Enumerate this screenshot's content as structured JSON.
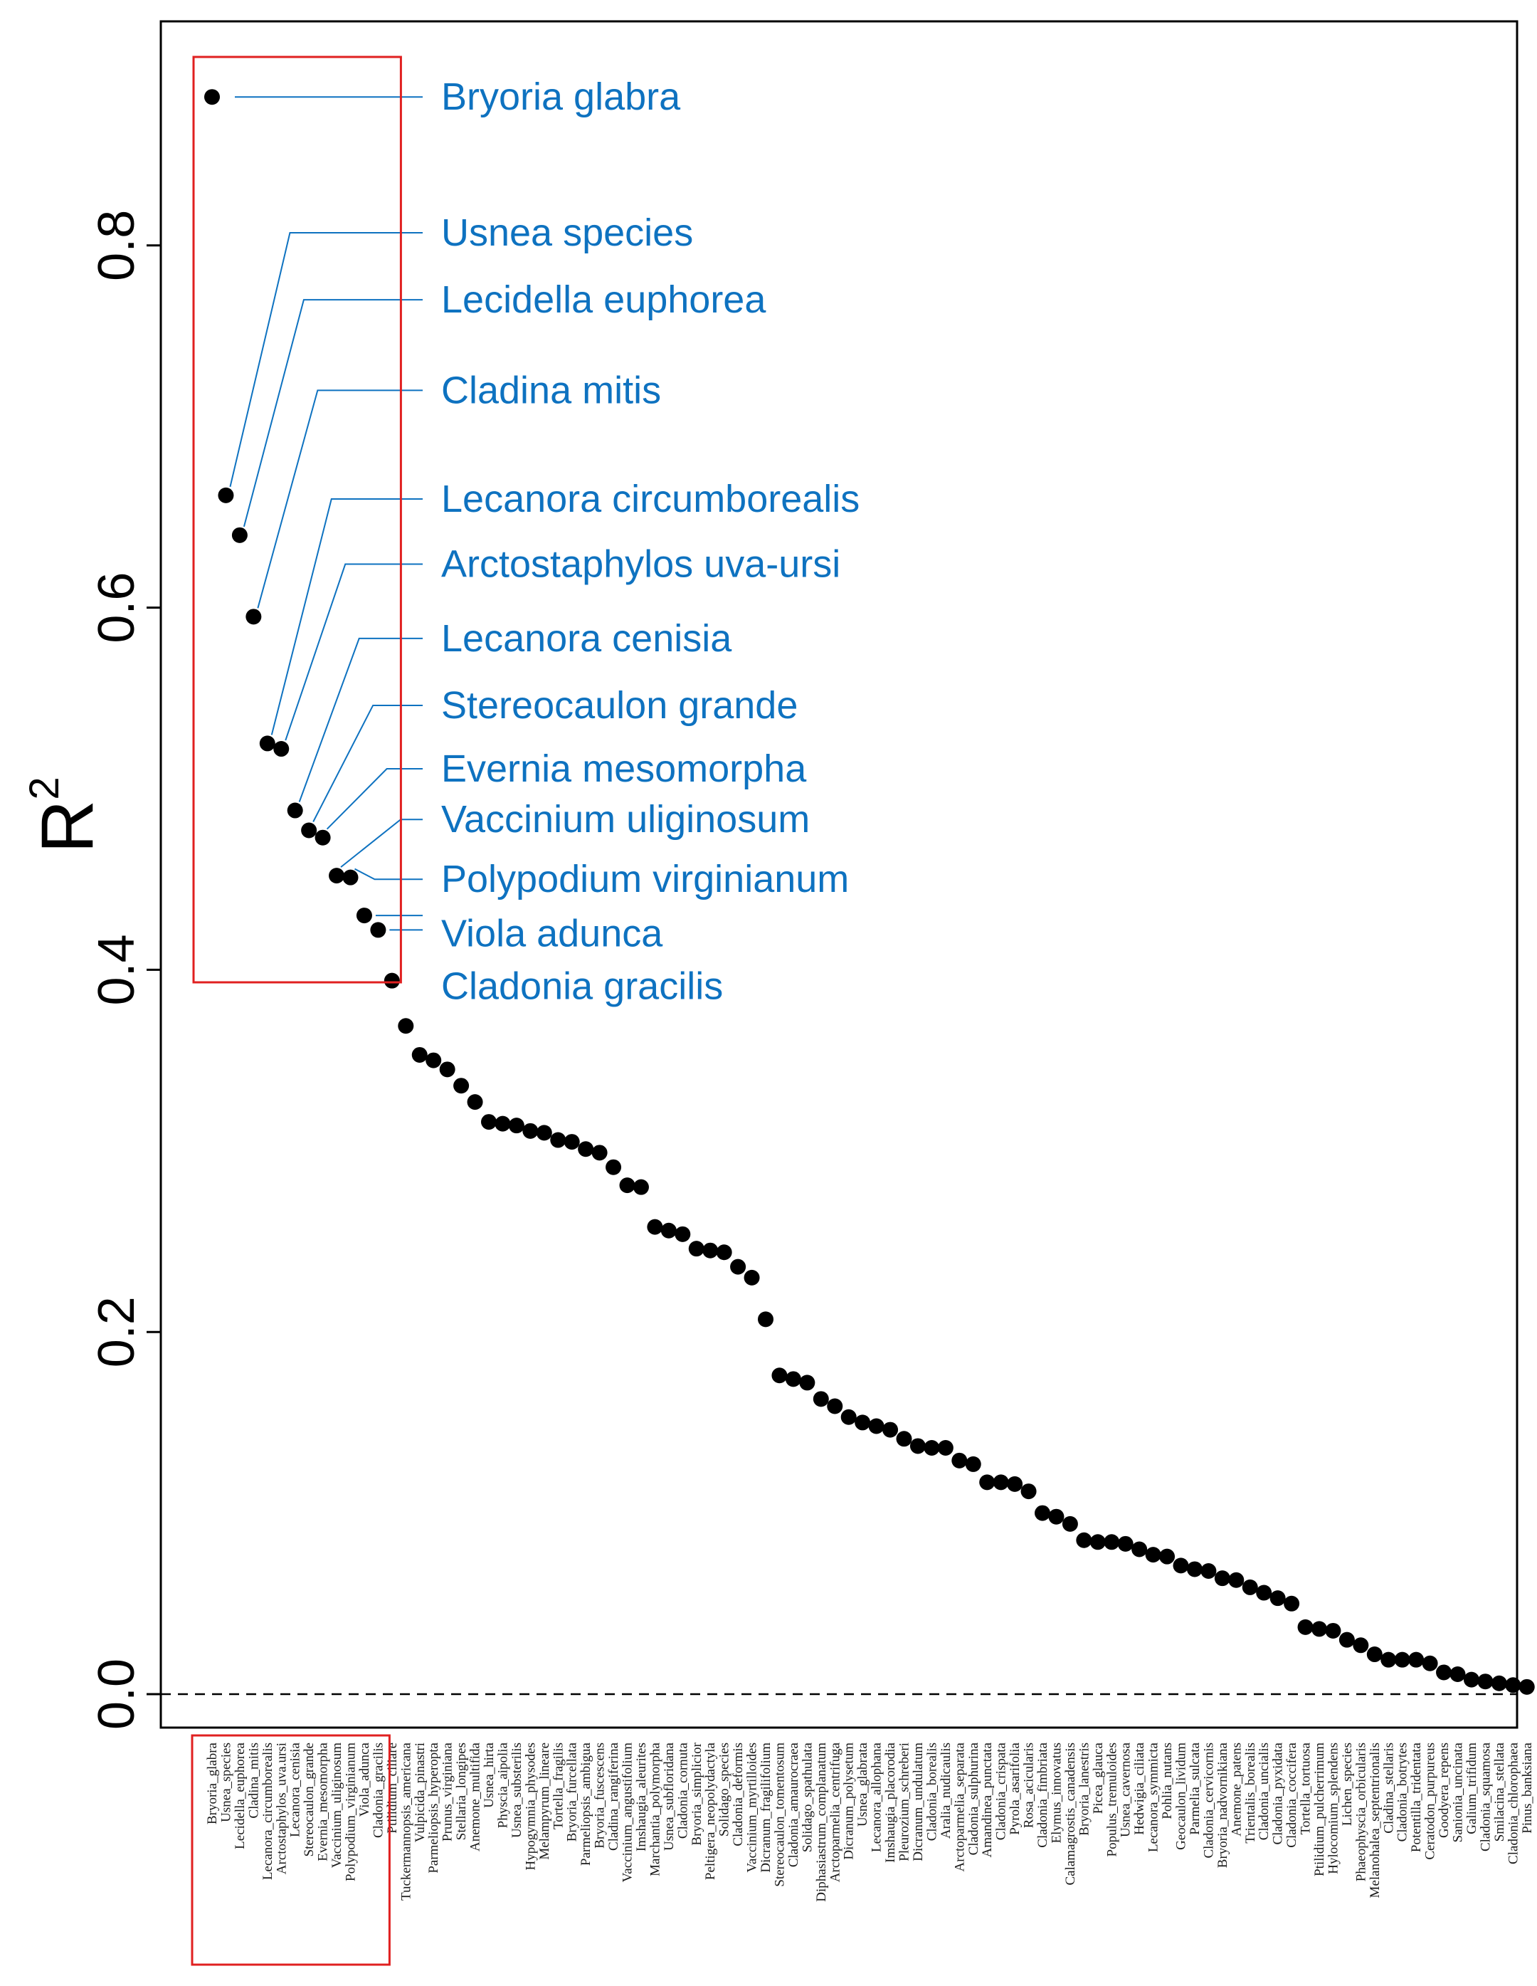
{
  "chart_data": {
    "type": "scatter",
    "title": "",
    "xlabel": "",
    "ylabel": "R",
    "ylabel_superscript": "2",
    "ylim": [
      -0.03,
      0.91
    ],
    "yticks": [
      0.0,
      0.2,
      0.4,
      0.6,
      0.8
    ],
    "ytick_labels": [
      "0.0",
      "0.2",
      "0.4",
      "0.6",
      "0.8"
    ],
    "reference_line": {
      "y": 0.0,
      "style": "dashed"
    },
    "grid": false,
    "categories": [
      "Bryoria_glabra",
      "Usnea_species",
      "Lecidella_euphorea",
      "Cladina_mitis",
      "Lecanora_circumborealis",
      "Arctostaphylos_uva.ursi",
      "Lecanora_cenisia",
      "Stereocaulon_grande",
      "Evernia_mesomorpha",
      "Vaccinium_uliginosum",
      "Polypodium_virginianum",
      "Viola_adunca",
      "Cladonia_gracilis",
      "Ptilidium_ciliare",
      "Tuckermannopsis_americana",
      "Vulpicida_pinastri",
      "Parmeliopsis_hyperopta",
      "Prunus_virginiana",
      "Stellaria_longipes",
      "Anemone_multifida",
      "Usnea_hirta",
      "Physcia_aipolia",
      "Usnea_substerilis",
      "Hypogymnia_physodes",
      "Melampyrum_lineare",
      "Tortella_fragilis",
      "Bryoria_furcellata",
      "Parmeliopsis_ambigua",
      "Bryoria_fuscescens",
      "Cladina_rangiferina",
      "Vaccinium_angustifolium",
      "Imshaugia_aleurites",
      "Marchantia_polymorpha",
      "Usnea_subfloridana",
      "Cladonia_cornuta",
      "Bryoria_simplicior",
      "Peltigera_neopolydactyla",
      "Solidago_species",
      "Cladonia_deformis",
      "Vaccinium_myrtilloides",
      "Dicranum_fragilifolium",
      "Stereocaulon_tomentosum",
      "Cladonia_amaurocraea",
      "Solidago_spathulata",
      "Diphasiastrum_complanatum",
      "Arctoparmelia_centrifuga",
      "Dicranum_polysetum",
      "Usnea_glabrata",
      "Lecanora_allophana",
      "Imshaugia_placorodia",
      "Pleurozium_schreberi",
      "Dicranum_undulatum",
      "Cladonia_borealis",
      "Aralia_nudicaulis",
      "Arctoparmelia_separata",
      "Cladonia_sulphurina",
      "Amandinea_punctata",
      "Cladonia_crispata",
      "Pyrola_asarifolia",
      "Rosa_acicularis",
      "Cladonia_fimbriata",
      "Elymus_innovatus",
      "Calamagrostis_canadensis",
      "Bryoria_lanestris",
      "Picea_glauca",
      "Populus_tremuloides",
      "Usnea_cavernosa",
      "Hedwigia_ciliata",
      "Lecanora_symmicta",
      "Pohlia_nutans",
      "Geocaulon_lividum",
      "Parmelia_sulcata",
      "Cladonia_cervicornis",
      "Bryoria_nadvornikiana",
      "Anemone_patens",
      "Trientalis_borealis",
      "Cladonia_uncialis",
      "Cladonia_pyxidata",
      "Cladonia_coccifera",
      "Tortella_tortuosa",
      "Ptilidium_pulcherrimum",
      "Hylocomium_splendens",
      "Lichen_species",
      "Phaeophyscia_orbicularis",
      "Melanohalea_septentrionalis",
      "Cladina_stellaris",
      "Cladonia_botrytes",
      "Potentilla_tridentata",
      "Ceratodon_purpureus",
      "Goodyera_repens",
      "Sanionia_uncinata",
      "Galium_trifidum",
      "Cladonia_squamosa",
      "Smilacina_stellata",
      "Cladonia_chlorophaea",
      "Pinus_banksiana"
    ],
    "values": [
      0.882,
      0.662,
      0.64,
      0.595,
      0.525,
      0.522,
      0.488,
      0.477,
      0.473,
      0.452,
      0.451,
      0.43,
      0.422,
      0.394,
      0.369,
      0.353,
      0.35,
      0.345,
      0.336,
      0.327,
      0.316,
      0.315,
      0.314,
      0.311,
      0.31,
      0.306,
      0.305,
      0.301,
      0.299,
      0.291,
      0.281,
      0.28,
      0.258,
      0.256,
      0.254,
      0.246,
      0.245,
      0.244,
      0.236,
      0.23,
      0.207,
      0.176,
      0.174,
      0.172,
      0.163,
      0.159,
      0.153,
      0.15,
      0.148,
      0.146,
      0.141,
      0.137,
      0.136,
      0.136,
      0.129,
      0.127,
      0.117,
      0.117,
      0.116,
      0.112,
      0.1,
      0.098,
      0.094,
      0.085,
      0.084,
      0.084,
      0.083,
      0.08,
      0.077,
      0.076,
      0.071,
      0.069,
      0.068,
      0.064,
      0.063,
      0.059,
      0.056,
      0.053,
      0.05,
      0.037,
      0.036,
      0.035,
      0.03,
      0.027,
      0.022,
      0.019,
      0.019,
      0.019,
      0.017,
      0.012,
      0.011,
      0.008,
      0.007,
      0.006,
      0.005,
      0.004
    ],
    "highlight_box": {
      "from_index": 0,
      "to_index": 12,
      "color": "#e02020"
    },
    "annotations": [
      {
        "index": 0,
        "text": "Bryoria glabra",
        "label_y": 0.882
      },
      {
        "index": 1,
        "text": "Usnea species",
        "label_y": 0.807
      },
      {
        "index": 2,
        "text": "Lecidella euphorea",
        "label_y": 0.77
      },
      {
        "index": 3,
        "text": "Cladina mitis",
        "label_y": 0.72
      },
      {
        "index": 4,
        "text": "Lecanora circumborealis",
        "label_y": 0.66
      },
      {
        "index": 5,
        "text": "Arctostaphylos uva-ursi",
        "label_y": 0.624
      },
      {
        "index": 6,
        "text": "Lecanora cenisia",
        "label_y": 0.583
      },
      {
        "index": 7,
        "text": "Stereocaulon grande",
        "label_y": 0.546
      },
      {
        "index": 8,
        "text": "Evernia mesomorpha",
        "label_y": 0.511
      },
      {
        "index": 9,
        "text": "Vaccinium uliginosum",
        "label_y": 0.483
      },
      {
        "index": 10,
        "text": "Polypodium virginianum",
        "label_y": 0.45
      },
      {
        "index": 11,
        "text": "Viola adunca",
        "label_y": 0.42
      },
      {
        "index": 12,
        "text": "Cladonia gracilis",
        "label_y": 0.391
      }
    ],
    "colors": {
      "points": "#000000",
      "callout": "#0e72c0",
      "box": "#e02020",
      "axis": "#000000"
    }
  }
}
